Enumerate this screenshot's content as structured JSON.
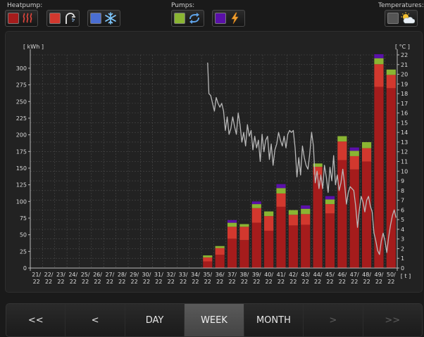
{
  "toolbar": {
    "heatpump_label": "Heatpump:",
    "pumps_label": "Pumps:",
    "temperatures_label": "Temperatures:",
    "buttons": [
      {
        "swatch": "#a51c1c",
        "icon": "heating-waves-icon"
      },
      {
        "swatch": "#d2382e",
        "icon": "shower-icon"
      },
      {
        "swatch": "#4a6ed2",
        "icon": "snowflake-icon"
      },
      {
        "swatch": "#8ab532",
        "icon": "circulation-pump-icon"
      },
      {
        "swatch": "#5a10a8",
        "icon": "lightning-icon"
      },
      {
        "swatch": "#555555",
        "icon": "weather-sun-cloud-icon"
      }
    ]
  },
  "nav": {
    "first": "<<",
    "prev": "<",
    "day": "DAY",
    "week": "WEEK",
    "month": "MONTH",
    "next": ">",
    "last": ">>",
    "active": "week"
  },
  "chart_data": {
    "type": "bar",
    "y_left_unit": "[ kWh ]",
    "y_right_unit": "[ °C ]",
    "x_unit": "[ t ]",
    "ylim_left": [
      0,
      320
    ],
    "ylim_right": [
      0,
      22
    ],
    "y_left_ticks": [
      0,
      25,
      50,
      75,
      100,
      125,
      150,
      175,
      200,
      225,
      250,
      275,
      300
    ],
    "y_right_ticks": [
      0,
      1,
      2,
      3,
      4,
      5,
      6,
      7,
      8,
      9,
      10,
      11,
      12,
      13,
      14,
      15,
      16,
      17,
      18,
      19,
      20,
      21,
      22
    ],
    "grid": true,
    "categories": [
      [
        "21/",
        "22"
      ],
      [
        "22/",
        "22"
      ],
      [
        "23/",
        "22"
      ],
      [
        "24/",
        "22"
      ],
      [
        "25/",
        "22"
      ],
      [
        "26/",
        "22"
      ],
      [
        "27/",
        "22"
      ],
      [
        "28/",
        "22"
      ],
      [
        "29/",
        "22"
      ],
      [
        "30/",
        "22"
      ],
      [
        "31/",
        "22"
      ],
      [
        "32/",
        "22"
      ],
      [
        "33/",
        "22"
      ],
      [
        "34/",
        "22"
      ],
      [
        "35/",
        "22"
      ],
      [
        "36/",
        "22"
      ],
      [
        "37/",
        "22"
      ],
      [
        "38/",
        "22"
      ],
      [
        "39/",
        "22"
      ],
      [
        "40/",
        "22"
      ],
      [
        "41/",
        "22"
      ],
      [
        "42/",
        "22"
      ],
      [
        "43/",
        "22"
      ],
      [
        "44/",
        "22"
      ],
      [
        "45/",
        "22"
      ],
      [
        "46/",
        "22"
      ],
      [
        "47/",
        "22"
      ],
      [
        "48/",
        "22"
      ],
      [
        "49/",
        "22"
      ],
      [
        "50/",
        "22"
      ]
    ],
    "series": [
      {
        "color": "#a51c1c",
        "values": [
          0,
          0,
          0,
          0,
          0,
          0,
          0,
          0,
          0,
          0,
          0,
          0,
          0,
          0,
          10,
          20,
          44,
          42,
          68,
          56,
          92,
          64,
          65,
          140,
          82,
          162,
          148,
          160,
          272,
          270
        ]
      },
      {
        "color": "#d2382e",
        "values": [
          0,
          0,
          0,
          0,
          0,
          0,
          0,
          0,
          0,
          0,
          0,
          0,
          0,
          0,
          6,
          10,
          18,
          20,
          22,
          22,
          20,
          16,
          16,
          12,
          14,
          28,
          20,
          20,
          34,
          20
        ]
      },
      {
        "color": "#8ab532",
        "values": [
          0,
          0,
          0,
          0,
          0,
          0,
          0,
          0,
          0,
          0,
          0,
          0,
          0,
          0,
          3,
          3,
          6,
          4,
          6,
          7,
          8,
          7,
          8,
          5,
          7,
          8,
          8,
          9,
          9,
          8
        ]
      },
      {
        "color": "#5a10a8",
        "values": [
          0,
          0,
          0,
          0,
          0,
          0,
          0,
          0,
          0,
          0,
          0,
          0,
          0,
          0,
          0,
          0,
          4,
          0,
          4,
          0,
          6,
          0,
          5,
          0,
          5,
          0,
          5,
          0,
          6,
          0
        ]
      }
    ],
    "temperature": {
      "color": "#b8b8b8",
      "x": [
        14.0,
        14.1,
        14.25,
        14.4,
        14.55,
        14.7,
        14.85,
        15.0,
        15.15,
        15.3,
        15.45,
        15.6,
        15.75,
        15.9,
        16.05,
        16.2,
        16.35,
        16.5,
        16.65,
        16.8,
        16.95,
        17.1,
        17.25,
        17.4,
        17.55,
        17.7,
        17.85,
        18.0,
        18.15,
        18.3,
        18.45,
        18.6,
        18.75,
        18.9,
        19.05,
        19.2,
        19.35,
        19.5,
        19.65,
        19.8,
        19.95,
        20.1,
        20.25,
        20.4,
        20.55,
        20.7,
        20.85,
        21.0,
        21.15,
        21.3,
        21.45,
        21.6,
        21.75,
        21.9,
        22.05,
        22.2,
        22.35,
        22.5,
        22.65,
        22.8,
        22.95,
        23.1,
        23.25,
        23.4,
        23.55,
        23.7,
        23.85,
        24.0,
        24.15,
        24.3,
        24.45,
        24.6,
        24.75,
        24.9,
        25.05,
        25.2,
        25.35,
        25.5,
        25.65,
        25.8,
        25.95,
        26.1,
        26.25,
        26.4,
        26.55,
        26.7,
        26.85,
        27.0,
        27.15,
        27.3,
        27.45,
        27.6,
        27.75,
        27.9,
        28.05,
        28.2,
        28.35,
        28.5,
        28.65,
        28.8,
        28.95,
        29.1,
        29.25,
        29.4
      ],
      "y": [
        21.2,
        18.0,
        17.8,
        17.0,
        16.2,
        17.6,
        17.0,
        16.6,
        17.0,
        16.2,
        14.2,
        15.6,
        13.8,
        14.4,
        15.6,
        14.6,
        13.8,
        16.0,
        14.8,
        13.0,
        14.0,
        12.6,
        14.8,
        13.6,
        14.2,
        12.2,
        13.6,
        12.4,
        13.2,
        11.0,
        13.8,
        12.0,
        13.2,
        13.6,
        11.2,
        12.8,
        10.6,
        12.2,
        12.8,
        14.0,
        13.2,
        12.6,
        13.6,
        12.4,
        13.8,
        14.2,
        14.0,
        14.2,
        12.4,
        9.4,
        11.4,
        9.6,
        12.6,
        11.4,
        10.6,
        10.2,
        11.8,
        14.0,
        12.6,
        8.8,
        10.0,
        8.2,
        9.6,
        8.2,
        10.6,
        9.4,
        7.8,
        10.4,
        9.0,
        11.6,
        8.6,
        9.6,
        8.0,
        8.8,
        10.2,
        8.6,
        6.6,
        7.8,
        8.4,
        8.2,
        8.0,
        6.4,
        4.2,
        6.0,
        7.4,
        6.8,
        5.8,
        7.0,
        7.4,
        6.4,
        5.8,
        3.6,
        2.8,
        1.8,
        1.4,
        2.8,
        3.6,
        2.8,
        1.6,
        3.2,
        4.4,
        5.4,
        6.0,
        5.2
      ]
    }
  }
}
